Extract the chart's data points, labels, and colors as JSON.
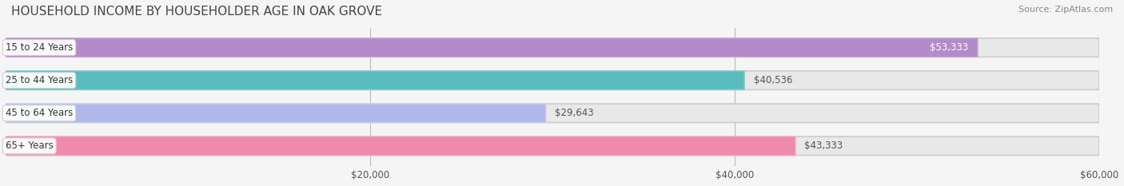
{
  "title": "HOUSEHOLD INCOME BY HOUSEHOLDER AGE IN OAK GROVE",
  "source": "Source: ZipAtlas.com",
  "categories": [
    "15 to 24 Years",
    "25 to 44 Years",
    "45 to 64 Years",
    "65+ Years"
  ],
  "values": [
    53333,
    40536,
    29643,
    43333
  ],
  "bar_colors": [
    "#b48ac8",
    "#5bbcbe",
    "#b0b8e8",
    "#f08aac"
  ],
  "bar_edge_colors": [
    "#c9a0dc",
    "#7dcfcf",
    "#c8cef0",
    "#f8a0c0"
  ],
  "label_colors": [
    "#ffffff",
    "#555555",
    "#555555",
    "#555555"
  ],
  "value_labels": [
    "$53,333",
    "$40,536",
    "$29,643",
    "$43,333"
  ],
  "xlim": [
    0,
    60000
  ],
  "xticks": [
    20000,
    40000,
    60000
  ],
  "xticklabels": [
    "$20,000",
    "$40,000",
    "$60,000"
  ],
  "background_color": "#f5f5f5",
  "bar_background_color": "#e8e8e8",
  "title_fontsize": 11,
  "source_fontsize": 8,
  "bar_height": 0.55,
  "figsize": [
    14.06,
    2.33
  ],
  "dpi": 100
}
